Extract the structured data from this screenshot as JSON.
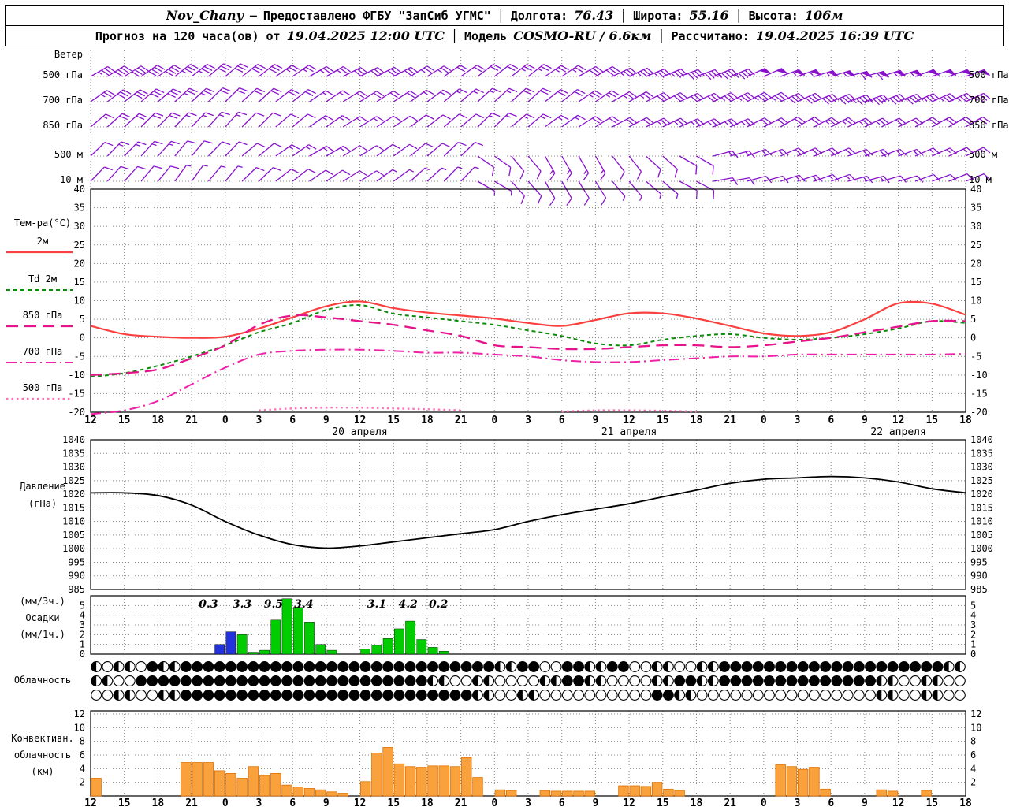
{
  "header": {
    "line1": {
      "station": "Nov_Chany",
      "dash": "—",
      "provided": "Предоставлено ФГБУ \"ЗапСиб УГМС\"",
      "sep": "│",
      "lon_label": "Долгота:",
      "lon": "76.43",
      "lat_label": "Широта:",
      "lat": "55.16",
      "alt_label": "Высота:",
      "alt": "106м"
    },
    "line2": {
      "forecast_label": "Прогноз на 120 часа(ов) от",
      "forecast_time": "19.04.2025 12:00 UTC",
      "sep": "│",
      "model_label": "Модель",
      "model": "COSMO-RU / 6.6км",
      "calc_label": "Рассчитано:",
      "calc_time": "19.04.2025 16:39 UTC"
    }
  },
  "panels": {
    "wind": {
      "title": "Ветер",
      "levels": [
        "500 гПа",
        "700 гПа",
        "850 гПа",
        "500 м",
        "10 м"
      ]
    },
    "temp": {
      "title": "Тем-ра(°C)",
      "legend": [
        {
          "label": "2м"
        },
        {
          "label": "Td 2м"
        },
        {
          "label": "850 гПа"
        },
        {
          "label": "700 гПа"
        },
        {
          "label": "500 гПа"
        }
      ],
      "yticks": [
        40,
        35,
        30,
        25,
        20,
        15,
        10,
        5,
        0,
        -5,
        -10,
        -15,
        -20
      ]
    },
    "pressure": {
      "label1": "Давление",
      "label2": "(гПа)",
      "yticks": [
        1040,
        1035,
        1030,
        1025,
        1020,
        1015,
        1010,
        1005,
        1000,
        995,
        990,
        985
      ]
    },
    "precip": {
      "label1": "(мм/3ч.)",
      "label2": "Осадки",
      "label3": "(мм/1ч.)",
      "yticks": [
        5,
        4,
        3,
        2,
        1,
        0
      ]
    },
    "cloud": {
      "label": "Облачность"
    },
    "conv": {
      "label1": "Конвективн.",
      "label2": "облачность",
      "label3": "(км)",
      "yticks": [
        12,
        10,
        8,
        6,
        4,
        2
      ]
    }
  },
  "axis": {
    "hours": [
      "12",
      "15",
      "18",
      "21",
      "0",
      "3",
      "6",
      "9",
      "12",
      "15",
      "18",
      "21",
      "0",
      "3",
      "6",
      "9",
      "12",
      "15",
      "18",
      "21",
      "0",
      "3",
      "6",
      "9",
      "12",
      "15",
      "18"
    ],
    "dates": [
      {
        "label": "20 апреля",
        "h": 24
      },
      {
        "label": "21 апреля",
        "h": 48
      },
      {
        "label": "22 апреля",
        "h": 72
      }
    ]
  },
  "colors": {
    "wind": "#8812cc",
    "t2m": "#fa4040",
    "td2m": "#0b8a0b",
    "t850": "#e6148c",
    "t700": "#f020a8",
    "t500": "#ff70b8",
    "pressure": "#000000",
    "precip_green": "#00cc00",
    "precip_blue": "#2233dd",
    "conv_fill": "#f9a13d",
    "conv_stroke": "#e07000"
  },
  "chart_data": [
    {
      "type": "wind-barbs",
      "title": "Ветер",
      "x_start_hour": 0,
      "x_step_hours": 3,
      "x_end_hour": 78,
      "levels": [
        {
          "name": "500 гПа",
          "dirs": [
            60,
            58,
            55,
            52,
            50,
            52,
            55,
            60,
            63,
            62,
            58,
            55,
            52,
            52,
            56,
            60,
            65,
            68,
            70,
            68,
            66,
            70,
            73,
            75,
            72,
            70,
            70
          ],
          "speeds_kt": [
            35,
            40,
            40,
            35,
            30,
            30,
            25,
            25,
            30,
            30,
            25,
            20,
            20,
            25,
            25,
            30,
            35,
            35,
            40,
            45,
            50,
            55,
            55,
            60,
            55,
            50,
            50
          ]
        },
        {
          "name": "700 гПа",
          "dirs": [
            55,
            53,
            50,
            48,
            46,
            48,
            52,
            56,
            58,
            57,
            54,
            50,
            48,
            48,
            52,
            56,
            60,
            63,
            65,
            63,
            62,
            65,
            68,
            70,
            68,
            66,
            65
          ],
          "speeds_kt": [
            25,
            30,
            30,
            25,
            20,
            20,
            20,
            15,
            20,
            20,
            15,
            15,
            15,
            20,
            20,
            25,
            25,
            30,
            30,
            35,
            35,
            40,
            40,
            45,
            40,
            35,
            35
          ]
        },
        {
          "name": "850 гПа",
          "dirs": [
            50,
            48,
            45,
            44,
            42,
            45,
            50,
            55,
            58,
            57,
            53,
            50,
            46,
            50,
            54,
            58,
            62,
            64,
            66,
            66,
            63,
            60,
            62,
            64,
            64,
            61,
            60
          ],
          "speeds_kt": [
            15,
            20,
            20,
            15,
            15,
            10,
            10,
            15,
            15,
            10,
            10,
            10,
            15,
            15,
            15,
            20,
            20,
            25,
            25,
            25,
            20,
            20,
            25,
            25,
            20,
            20,
            20
          ]
        },
        {
          "name": "500 м",
          "dirs": [
            46,
            44,
            42,
            40,
            44,
            50,
            55,
            60,
            58,
            54,
            50,
            46,
            125,
            140,
            150,
            150,
            142,
            132,
            120,
            75,
            70,
            66,
            66,
            70,
            70,
            66,
            64
          ],
          "speeds_kt": [
            10,
            15,
            15,
            10,
            10,
            10,
            15,
            15,
            10,
            10,
            10,
            10,
            10,
            10,
            15,
            15,
            10,
            10,
            10,
            15,
            15,
            20,
            20,
            20,
            15,
            15,
            15
          ]
        },
        {
          "name": "10 м",
          "dirs": [
            44,
            42,
            40,
            36,
            40,
            46,
            52,
            56,
            58,
            54,
            48,
            44,
            120,
            138,
            150,
            148,
            140,
            130,
            118,
            80,
            75,
            72,
            70,
            75,
            74,
            70,
            68
          ],
          "speeds_kt": [
            10,
            10,
            10,
            5,
            5,
            10,
            10,
            10,
            10,
            5,
            5,
            5,
            5,
            10,
            10,
            10,
            5,
            5,
            10,
            10,
            10,
            15,
            15,
            15,
            10,
            10,
            10
          ]
        }
      ]
    },
    {
      "type": "line",
      "title": "Температура (°C)",
      "ylim": [
        -20,
        40
      ],
      "x_hours": [
        0,
        3,
        6,
        9,
        12,
        15,
        18,
        21,
        24,
        27,
        30,
        33,
        36,
        39,
        42,
        45,
        48,
        51,
        54,
        57,
        60,
        63,
        66,
        69,
        72,
        75,
        78
      ],
      "series": [
        {
          "name": "2м",
          "color": "#fa4040",
          "dash": "solid",
          "width": 2.2,
          "values": [
            3.2,
            1.0,
            0.3,
            0.0,
            0.3,
            2.5,
            5.5,
            8.5,
            9.8,
            8.0,
            6.8,
            6.0,
            5.2,
            4.0,
            3.2,
            4.8,
            6.6,
            6.6,
            5.2,
            3.2,
            1.2,
            0.5,
            1.5,
            5.0,
            9.3,
            9.2,
            6.2
          ]
        },
        {
          "name": "Td 2м",
          "color": "#0b8a0b",
          "dash": "5 4",
          "width": 2,
          "values": [
            -10.5,
            -9.5,
            -7.5,
            -5.0,
            -2.0,
            1.5,
            4.0,
            7.5,
            8.8,
            6.5,
            5.5,
            4.5,
            3.5,
            2.0,
            0.5,
            -1.5,
            -2.0,
            -0.5,
            0.5,
            1.0,
            0.0,
            -0.5,
            0.0,
            1.0,
            2.5,
            4.5,
            4.0
          ]
        },
        {
          "name": "850 гПа",
          "color": "#e6148c",
          "dash": "15 8",
          "width": 2.3,
          "values": [
            -10.0,
            -9.5,
            -8.5,
            -5.5,
            -2.0,
            3.5,
            6.0,
            5.5,
            4.5,
            3.5,
            2.0,
            0.5,
            -2.0,
            -2.5,
            -3.0,
            -3.0,
            -2.5,
            -2.0,
            -2.0,
            -2.5,
            -2.0,
            -1.0,
            0.0,
            1.5,
            3.0,
            4.5,
            4.5
          ]
        },
        {
          "name": "700 гПа",
          "color": "#f020a8",
          "dash": "13 5 2 5",
          "width": 2,
          "values": [
            -20.5,
            -19.5,
            -17.0,
            -12.5,
            -8.0,
            -4.5,
            -3.5,
            -3.2,
            -3.2,
            -3.5,
            -4.0,
            -4.0,
            -4.5,
            -5.0,
            -6.0,
            -6.5,
            -6.5,
            -6.0,
            -5.5,
            -5.0,
            -5.0,
            -4.5,
            -4.5,
            -4.5,
            -4.5,
            -4.5,
            -4.3
          ]
        },
        {
          "name": "500 гПа",
          "color": "#ff70b8",
          "dash": "2.5 4",
          "width": 2.3,
          "values": [
            null,
            null,
            null,
            null,
            null,
            -19.5,
            -19.0,
            -18.8,
            -18.8,
            -19.0,
            -19.2,
            -19.5,
            null,
            null,
            -19.8,
            -19.5,
            -19.5,
            -19.6,
            -19.8,
            null,
            null,
            null,
            null,
            null,
            null,
            null,
            null
          ]
        }
      ]
    },
    {
      "type": "line",
      "title": "Давление (гПа)",
      "ylim": [
        985,
        1040
      ],
      "x_hours": [
        0,
        3,
        6,
        9,
        12,
        15,
        18,
        21,
        24,
        27,
        30,
        33,
        36,
        39,
        42,
        45,
        48,
        51,
        54,
        57,
        60,
        63,
        66,
        69,
        72,
        75,
        78
      ],
      "series": [
        {
          "name": "Давление",
          "color": "#000000",
          "dash": "solid",
          "width": 1.8,
          "values": [
            1020.5,
            1020.5,
            1019.5,
            1016.0,
            1010.0,
            1005.0,
            1001.5,
            1000.2,
            1001.0,
            1002.5,
            1004.0,
            1005.5,
            1007.0,
            1010.0,
            1012.5,
            1014.5,
            1016.5,
            1019.0,
            1021.5,
            1024.0,
            1025.5,
            1026.0,
            1026.5,
            1026.0,
            1024.5,
            1022.0,
            1020.5
          ]
        }
      ]
    },
    {
      "type": "bar",
      "title": "Осадки (мм/1ч)",
      "ylim": [
        0,
        6
      ],
      "bars": [
        [
          11,
          1.0,
          "b"
        ],
        [
          12,
          2.3,
          "b"
        ],
        [
          13,
          2.0,
          "g"
        ],
        [
          14,
          0.2,
          "g"
        ],
        [
          15,
          0.4,
          "g"
        ],
        [
          16,
          3.5,
          "g"
        ],
        [
          17,
          5.7,
          "g"
        ],
        [
          18,
          4.8,
          "g"
        ],
        [
          19,
          3.3,
          "g"
        ],
        [
          20,
          1.0,
          "g"
        ],
        [
          21,
          0.4,
          "g"
        ],
        [
          24,
          0.5,
          "g"
        ],
        [
          25,
          0.9,
          "g"
        ],
        [
          26,
          1.6,
          "g"
        ],
        [
          27,
          2.6,
          "g"
        ],
        [
          28,
          3.4,
          "g"
        ],
        [
          29,
          1.5,
          "g"
        ],
        [
          30,
          0.7,
          "g"
        ],
        [
          31,
          0.3,
          "g"
        ]
      ],
      "amount_labels_3h": [
        {
          "text": "0.3",
          "h": 10.5
        },
        {
          "text": "3.3",
          "h": 13.5
        },
        {
          "text": "9.5",
          "h": 16.3
        },
        {
          "text": "3.4",
          "h": 19.0
        },
        {
          "text": "3.1",
          "h": 25.5
        },
        {
          "text": "4.2",
          "h": 28.3
        },
        {
          "text": "0.2",
          "h": 31.0
        }
      ]
    },
    {
      "type": "cloud-symbols",
      "title": "Облачность",
      "okta_scale": "0=ясно, 4=половина, 8=сплошная",
      "rows": [
        "404408448888888888888888888888888888448800884488004400448888888888888888888844440000",
        "440088888888888888888888888888440044000044884400004488448888888888888844004400004400",
        "004400448888888888888888888888888844004400000000008844000000000000000044004400448844"
      ]
    },
    {
      "type": "bar",
      "title": "Конвективная облачность (км)",
      "ylim": [
        0,
        12
      ],
      "bars": [
        [
          0,
          2.6
        ],
        [
          8,
          4.9
        ],
        [
          9,
          4.9
        ],
        [
          10,
          4.9
        ],
        [
          11,
          3.7
        ],
        [
          12,
          3.3
        ],
        [
          13,
          2.6
        ],
        [
          14,
          4.3
        ],
        [
          15,
          3.0
        ],
        [
          16,
          3.3
        ],
        [
          17,
          1.6
        ],
        [
          18,
          1.3
        ],
        [
          19,
          1.1
        ],
        [
          20,
          0.9
        ],
        [
          21,
          0.6
        ],
        [
          22,
          0.4
        ],
        [
          24,
          2.1
        ],
        [
          25,
          6.3
        ],
        [
          26,
          7.1
        ],
        [
          27,
          4.7
        ],
        [
          28,
          4.3
        ],
        [
          29,
          4.2
        ],
        [
          30,
          4.4
        ],
        [
          31,
          4.4
        ],
        [
          32,
          4.3
        ],
        [
          33,
          5.6
        ],
        [
          34,
          2.7
        ],
        [
          36,
          0.9
        ],
        [
          37,
          0.8
        ],
        [
          40,
          0.8
        ],
        [
          41,
          0.7
        ],
        [
          42,
          0.7
        ],
        [
          43,
          0.7
        ],
        [
          44,
          0.7
        ],
        [
          47,
          1.5
        ],
        [
          48,
          1.5
        ],
        [
          49,
          1.4
        ],
        [
          50,
          2.0
        ],
        [
          51,
          1.0
        ],
        [
          52,
          0.8
        ],
        [
          61,
          4.6
        ],
        [
          62,
          4.3
        ],
        [
          63,
          3.9
        ],
        [
          64,
          4.2
        ],
        [
          65,
          1.0
        ],
        [
          70,
          0.9
        ],
        [
          71,
          0.7
        ],
        [
          74,
          0.8
        ]
      ]
    }
  ]
}
